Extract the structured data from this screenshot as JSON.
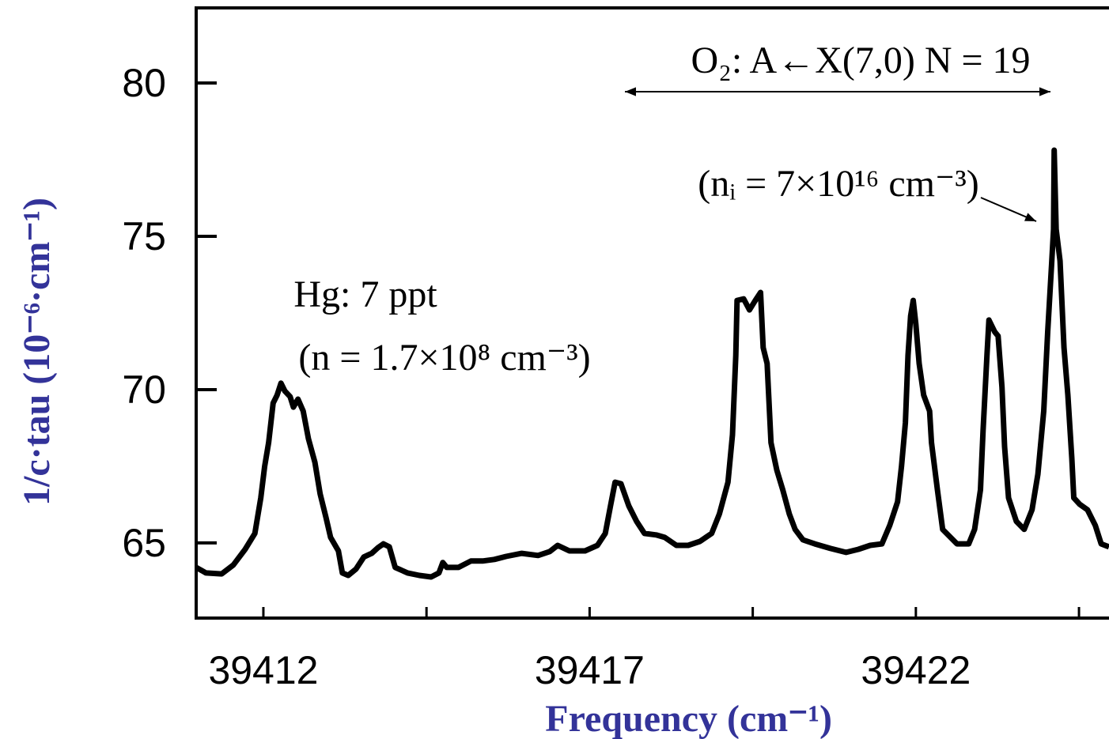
{
  "chart_data": {
    "type": "line",
    "xlabel": "Frequency (cm⁻¹)",
    "ylabel": "1/c·tau (10⁻⁶·cm⁻¹)",
    "annotations": [
      "O₂: A←X(7,0) N = 19",
      "(nᵢ = 7×10¹⁶ cm⁻³)",
      "Hg: 7 ppt",
      "(n = 1.7×10⁸ cm⁻³)"
    ],
    "annotation_colors": [
      "#000000",
      "#000000",
      "#ff4422",
      "#000000"
    ],
    "xlim": [
      39410.97,
      39424.96
    ],
    "ylim": [
      62.6,
      82.45
    ],
    "xticks": [
      39412,
      39417,
      39422
    ],
    "xminorticks": [
      39414.5,
      39419.5,
      39424.5
    ],
    "yticks": [
      65,
      70,
      75,
      80
    ],
    "x": [
      39410.97,
      39411.12,
      39411.36,
      39411.54,
      39411.72,
      39411.87,
      39411.96,
      39412.02,
      39412.08,
      39412.15,
      39412.21,
      39412.27,
      39412.33,
      39412.41,
      39412.46,
      39412.53,
      39412.61,
      39412.69,
      39412.79,
      39412.87,
      39412.96,
      39413.03,
      39413.15,
      39413.21,
      39413.3,
      39413.42,
      39413.54,
      39413.66,
      39413.76,
      39413.84,
      39413.93,
      39414.02,
      39414.21,
      39414.39,
      39414.57,
      39414.69,
      39414.75,
      39414.81,
      39414.99,
      39415.18,
      39415.36,
      39415.54,
      39415.72,
      39415.96,
      39416.21,
      39416.39,
      39416.51,
      39416.69,
      39416.93,
      39417.12,
      39417.24,
      39417.32,
      39417.39,
      39417.48,
      39417.6,
      39417.72,
      39417.84,
      39418.02,
      39418.15,
      39418.33,
      39418.51,
      39418.69,
      39418.87,
      39418.99,
      39419.12,
      39419.19,
      39419.24,
      39419.26,
      39419.36,
      39419.45,
      39419.54,
      39419.62,
      39419.66,
      39419.72,
      39419.78,
      39419.87,
      39419.96,
      39420.06,
      39420.15,
      39420.27,
      39420.45,
      39420.69,
      39420.93,
      39421.12,
      39421.3,
      39421.48,
      39421.6,
      39421.72,
      39421.78,
      39421.84,
      39421.88,
      39421.92,
      39421.96,
      39422.0,
      39422.05,
      39422.12,
      39422.21,
      39422.24,
      39422.33,
      39422.41,
      39422.63,
      39422.81,
      39422.9,
      39422.99,
      39423.03,
      39423.09,
      39423.12,
      39423.21,
      39423.26,
      39423.32,
      39423.36,
      39423.42,
      39423.54,
      39423.66,
      39423.78,
      39423.87,
      39423.96,
      39424.02,
      39424.08,
      39424.11,
      39424.12,
      39424.15,
      39424.21,
      39424.27,
      39424.33,
      39424.39,
      39424.42,
      39424.51,
      39424.63,
      39424.75,
      39424.84,
      39424.96
    ],
    "series": [
      {
        "color": "#000000",
        "values": [
          64.2,
          64.02,
          63.99,
          64.28,
          64.79,
          65.31,
          66.47,
          67.5,
          68.27,
          69.56,
          69.82,
          70.21,
          69.95,
          69.77,
          69.43,
          69.69,
          69.3,
          68.4,
          67.63,
          66.6,
          65.82,
          65.18,
          64.74,
          64.02,
          63.94,
          64.15,
          64.54,
          64.66,
          64.85,
          64.97,
          64.87,
          64.2,
          64.02,
          63.94,
          63.89,
          64.02,
          64.36,
          64.2,
          64.2,
          64.41,
          64.41,
          64.46,
          64.56,
          64.66,
          64.59,
          64.72,
          64.92,
          64.74,
          64.74,
          64.92,
          65.31,
          66.21,
          66.98,
          66.93,
          66.21,
          65.7,
          65.31,
          65.26,
          65.18,
          64.92,
          64.92,
          65.05,
          65.31,
          65.95,
          66.98,
          68.53,
          71.11,
          72.91,
          72.96,
          72.6,
          72.91,
          73.17,
          71.37,
          70.85,
          68.27,
          67.37,
          66.73,
          65.95,
          65.44,
          65.1,
          64.97,
          64.82,
          64.69,
          64.79,
          64.92,
          64.97,
          65.57,
          66.34,
          67.5,
          68.92,
          71.11,
          72.4,
          72.91,
          72.14,
          70.85,
          69.82,
          69.3,
          68.27,
          66.73,
          65.44,
          64.97,
          64.97,
          65.44,
          66.73,
          68.66,
          71.11,
          72.27,
          71.88,
          71.75,
          70.08,
          68.14,
          66.47,
          65.7,
          65.44,
          66.08,
          67.24,
          69.3,
          71.88,
          74.07,
          75.23,
          77.81,
          75.23,
          74.2,
          71.37,
          69.82,
          67.76,
          66.47,
          66.26,
          66.08,
          65.57,
          64.97,
          64.87
        ]
      }
    ]
  }
}
